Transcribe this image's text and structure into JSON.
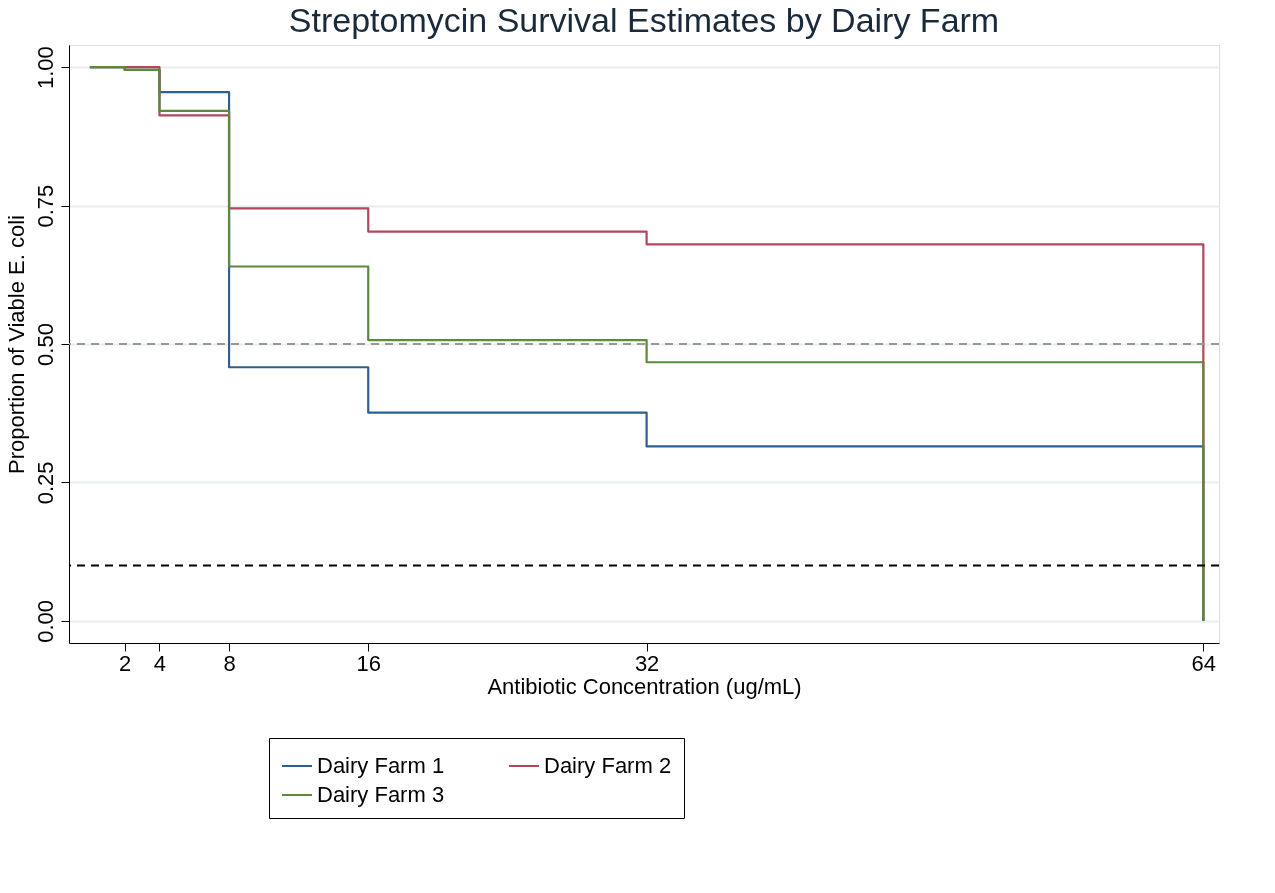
{
  "chart_data": {
    "type": "step",
    "title": "Streptomycin Survival Estimates by Dairy Farm",
    "xlabel": "Antibiotic Concentration (ug/mL)",
    "ylabel": "Proportion of Viable E. coli",
    "x": [
      0,
      2,
      4,
      8,
      16,
      32,
      64
    ],
    "series": [
      {
        "name": "Dairy Farm 1",
        "color": "#2f5f8f",
        "values": [
          1.0,
          0.995,
          0.955,
          0.458,
          0.376,
          0.315,
          0
        ]
      },
      {
        "name": "Dairy Farm 2",
        "color": "#b2475a",
        "values": [
          1.0,
          1.0,
          0.913,
          0.745,
          0.703,
          0.68,
          0
        ]
      },
      {
        "name": "Dairy Farm 3",
        "color": "#5a8a3a",
        "values": [
          1.0,
          0.995,
          0.921,
          0.64,
          0.507,
          0.467,
          0
        ]
      }
    ],
    "xlim": [
      -1.2,
      64.9
    ],
    "ylim": [
      -0.04,
      1.04
    ],
    "xticks": [
      2,
      4,
      8,
      16,
      32,
      64
    ],
    "yticks": [
      {
        "value": 0,
        "label": "0.00"
      },
      {
        "value": 0.25,
        "label": "0.25"
      },
      {
        "value": 0.5,
        "label": "0.50"
      },
      {
        "value": 0.75,
        "label": "0.75"
      },
      {
        "value": 1,
        "label": "1.00"
      }
    ],
    "ref_lines": [
      {
        "axis": "y",
        "value": 0.5,
        "color": "#999999",
        "line_style": "dashed"
      },
      {
        "axis": "y",
        "value": 0.1,
        "color": "#000000",
        "line_style": "dashed"
      }
    ],
    "grid": "y",
    "legend": "bottom",
    "marker": "none",
    "line_style": "solid"
  }
}
